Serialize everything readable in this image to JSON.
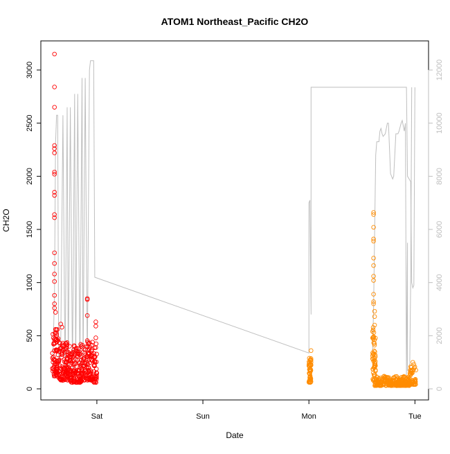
{
  "chart_data": {
    "type": "scatter",
    "title": "ATOM1 Northeast_Pacific CH2O",
    "xlabel": "Date",
    "ylabel": "CH2O",
    "x_ticks": [
      "Sat",
      "Sun",
      "Mon",
      "Tue"
    ],
    "x_tick_values": [
      2.0,
      3.0,
      4.0,
      5.0
    ],
    "xlim": [
      1.55,
      5.05
    ],
    "ylim": [
      0,
      3150
    ],
    "y_ticks": [
      0,
      500,
      1000,
      1500,
      2000,
      2500,
      3000
    ],
    "y2lim": [
      0,
      12600
    ],
    "y2_ticks": [
      0,
      2000,
      4000,
      6000,
      8000,
      10000,
      12000
    ],
    "grid": false,
    "colors": {
      "series_red": "#ff0000",
      "series_orange": "#ff8c00",
      "altitude_line": "#bebebe",
      "axis": "#000000",
      "axis2": "#bebebe"
    },
    "series": [
      {
        "color": "#ff0000",
        "clusters": [
          {
            "x_range": [
              1.58,
              1.64
            ],
            "y_range": [
              120,
              560
            ],
            "n": 70
          },
          {
            "x_range": [
              1.64,
              1.75
            ],
            "y_range": [
              80,
              440
            ],
            "n": 110
          },
          {
            "x_range": [
              1.75,
              1.86
            ],
            "y_range": [
              60,
              420
            ],
            "n": 110
          },
          {
            "x_range": [
              1.86,
              1.96
            ],
            "y_range": [
              80,
              460
            ],
            "n": 100
          },
          {
            "x_range": [
              1.97,
              2.0
            ],
            "y_range": [
              60,
              450
            ],
            "n": 35
          }
        ],
        "outliers": [
          [
            1.6,
            3150
          ],
          [
            1.6,
            2840
          ],
          [
            1.6,
            2650
          ],
          [
            1.6,
            2290
          ],
          [
            1.6,
            2260
          ],
          [
            1.6,
            2220
          ],
          [
            1.6,
            2040
          ],
          [
            1.6,
            2020
          ],
          [
            1.6,
            1850
          ],
          [
            1.6,
            1820
          ],
          [
            1.6,
            1640
          ],
          [
            1.6,
            1610
          ],
          [
            1.6,
            1280
          ],
          [
            1.6,
            1180
          ],
          [
            1.6,
            1080
          ],
          [
            1.6,
            1010
          ],
          [
            1.6,
            880
          ],
          [
            1.6,
            800
          ],
          [
            1.6,
            760
          ],
          [
            1.61,
            720
          ],
          [
            1.61,
            560
          ],
          [
            1.62,
            520
          ],
          [
            1.66,
            610
          ],
          [
            1.67,
            580
          ],
          [
            1.91,
            850
          ],
          [
            1.91,
            840
          ],
          [
            1.91,
            690
          ],
          [
            1.99,
            630
          ],
          [
            1.99,
            590
          ],
          [
            1.99,
            480
          ]
        ]
      },
      {
        "color": "#ff8c00",
        "clusters": [
          {
            "x_range": [
              4.0,
              4.02
            ],
            "y_range": [
              60,
              300
            ],
            "n": 50
          },
          {
            "x_range": [
              4.6,
              4.63
            ],
            "y_range": [
              80,
              600
            ],
            "n": 50
          },
          {
            "x_range": [
              4.62,
              4.95
            ],
            "y_range": [
              30,
              120
            ],
            "n": 230
          },
          {
            "x_range": [
              4.95,
              5.01
            ],
            "y_range": [
              40,
              210
            ],
            "n": 45
          }
        ],
        "outliers": [
          [
            4.02,
            360
          ],
          [
            4.02,
            270
          ],
          [
            4.02,
            250
          ],
          [
            4.61,
            1660
          ],
          [
            4.61,
            1640
          ],
          [
            4.61,
            1520
          ],
          [
            4.61,
            1410
          ],
          [
            4.61,
            1390
          ],
          [
            4.61,
            1230
          ],
          [
            4.61,
            1160
          ],
          [
            4.61,
            1060
          ],
          [
            4.61,
            1020
          ],
          [
            4.61,
            890
          ],
          [
            4.61,
            820
          ],
          [
            4.61,
            800
          ],
          [
            4.62,
            730
          ],
          [
            4.62,
            680
          ],
          [
            4.62,
            600
          ],
          [
            4.98,
            250
          ],
          [
            4.99,
            230
          ]
        ]
      }
    ],
    "altitude_line": {
      "axis": "right",
      "points": [
        [
          1.58,
          400
        ],
        [
          1.6,
          3500
        ],
        [
          1.61,
          9200
        ],
        [
          1.62,
          10300
        ],
        [
          1.63,
          10300
        ],
        [
          1.64,
          800
        ],
        [
          1.66,
          1800
        ],
        [
          1.68,
          10300
        ],
        [
          1.7,
          500
        ],
        [
          1.72,
          10600
        ],
        [
          1.73,
          600
        ],
        [
          1.75,
          10600
        ],
        [
          1.77,
          600
        ],
        [
          1.79,
          11100
        ],
        [
          1.8,
          700
        ],
        [
          1.82,
          11100
        ],
        [
          1.84,
          600
        ],
        [
          1.86,
          11700
        ],
        [
          1.87,
          700
        ],
        [
          1.89,
          11700
        ],
        [
          1.91,
          800
        ],
        [
          1.93,
          12000
        ],
        [
          1.94,
          12350
        ],
        [
          1.97,
          12350
        ],
        [
          1.98,
          4200
        ],
        [
          4.0,
          1350
        ],
        [
          4.0,
          7000
        ],
        [
          4.01,
          7100
        ],
        [
          4.01,
          6900
        ],
        [
          4.02,
          2800
        ],
        [
          4.02,
          11350
        ],
        [
          4.6,
          11350
        ],
        [
          4.63,
          11350
        ],
        [
          4.92,
          11350
        ],
        [
          4.93,
          8000
        ],
        [
          4.96,
          7800
        ],
        [
          4.97,
          4000
        ],
        [
          4.98,
          3800
        ],
        [
          4.99,
          3900
        ],
        [
          5.0,
          11350
        ],
        [
          5.0,
          11200
        ]
      ],
      "extra_path": [
        [
          4.6,
          1400
        ],
        [
          4.61,
          3000
        ],
        [
          4.62,
          5800
        ],
        [
          4.63,
          8800
        ],
        [
          4.64,
          9300
        ],
        [
          4.66,
          9300
        ],
        [
          4.67,
          9700
        ],
        [
          4.68,
          9800
        ],
        [
          4.69,
          9600
        ],
        [
          4.7,
          9500
        ],
        [
          4.72,
          9600
        ],
        [
          4.74,
          10000
        ],
        [
          4.75,
          10000
        ],
        [
          4.77,
          8100
        ],
        [
          4.79,
          7900
        ],
        [
          4.8,
          8000
        ],
        [
          4.82,
          9600
        ],
        [
          4.84,
          9600
        ],
        [
          4.85,
          9700
        ],
        [
          4.87,
          10000
        ],
        [
          4.88,
          10100
        ],
        [
          4.9,
          9700
        ],
        [
          4.91,
          10000
        ],
        [
          4.92,
          500
        ],
        [
          4.93,
          5500
        ],
        [
          4.93,
          700
        ],
        [
          4.95,
          600
        ],
        [
          4.96,
          4000
        ],
        [
          4.97,
          11350
        ]
      ]
    }
  }
}
